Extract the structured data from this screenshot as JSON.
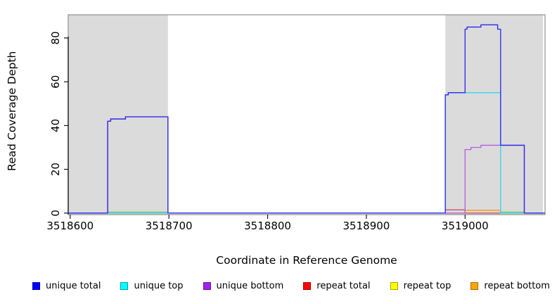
{
  "chart_data": {
    "type": "line",
    "style": "step",
    "title": "",
    "xlabel": "Coordinate in Reference Genome",
    "ylabel": "Read Coverage Depth",
    "xlim": [
      3518598,
      3519081
    ],
    "ylim": [
      -0.7,
      90.6
    ],
    "x_ticks": [
      3518600,
      3518700,
      3518800,
      3518900,
      3519000
    ],
    "y_ticks": [
      0,
      20,
      40,
      60,
      80
    ],
    "grid": false,
    "legend_position": "bottom",
    "background_shading": {
      "color": "#DBDBDB",
      "regions": [
        {
          "from": 3518598,
          "to": 3518699
        },
        {
          "from": 3518980,
          "to": 3519079
        }
      ]
    },
    "series": [
      {
        "name": "unique total",
        "color": "#2B2BEE",
        "steps": [
          [
            3518598,
            0
          ],
          [
            3518638,
            42
          ],
          [
            3518641,
            43
          ],
          [
            3518656,
            44
          ],
          [
            3518699,
            0
          ],
          [
            3518980,
            54
          ],
          [
            3518983,
            55
          ],
          [
            3519000,
            84
          ],
          [
            3519002,
            85
          ],
          [
            3519016,
            86
          ],
          [
            3519033,
            84
          ],
          [
            3519036,
            31
          ],
          [
            3519060,
            0
          ]
        ]
      },
      {
        "name": "unique top",
        "color": "#35D9E6",
        "steps": [
          [
            3518598,
            0
          ],
          [
            3518980,
            54
          ],
          [
            3518983,
            55
          ],
          [
            3519036,
            0
          ]
        ]
      },
      {
        "name": "unique bottom",
        "color": "#B55FDE",
        "steps": [
          [
            3518598,
            0
          ],
          [
            3518638,
            42
          ],
          [
            3518641,
            43
          ],
          [
            3518656,
            44
          ],
          [
            3518699,
            0
          ],
          [
            3519000,
            29
          ],
          [
            3519006,
            30
          ],
          [
            3519016,
            31
          ],
          [
            3519060,
            0
          ]
        ]
      },
      {
        "name": "repeat total",
        "color": "#C8506E",
        "steps": [
          [
            3518598,
            0
          ],
          [
            3518980,
            1.5
          ],
          [
            3519000,
            0
          ]
        ]
      },
      {
        "name": "repeat top",
        "color": "#EDED00",
        "steps": [
          [
            3518598,
            0
          ]
        ]
      },
      {
        "name": "repeat bottom",
        "color": "#FF9412",
        "steps": [
          [
            3518598,
            0
          ],
          [
            3519000,
            1.3
          ],
          [
            3519036,
            0
          ]
        ]
      }
    ],
    "baseline_overlap_segments": [
      {
        "from": 3518638,
        "to": 3518699,
        "value": 0.5,
        "color": "#7CC97F"
      },
      {
        "from": 3519036,
        "to": 3519060,
        "value": 0.5,
        "color": "#7CC97F"
      }
    ]
  },
  "legend": {
    "items": [
      {
        "label": "unique total",
        "fill": "#0000FF",
        "border": "#0000A8"
      },
      {
        "label": "unique top",
        "fill": "#00FFFF",
        "border": "#009FAF"
      },
      {
        "label": "unique bottom",
        "fill": "#A020F0",
        "border": "#6A14A0"
      },
      {
        "label": "repeat total",
        "fill": "#FF0000",
        "border": "#A80000"
      },
      {
        "label": "repeat top",
        "fill": "#FFFF00",
        "border": "#A8A800"
      },
      {
        "label": "repeat bottom",
        "fill": "#FFA500",
        "border": "#A86E00"
      }
    ]
  }
}
